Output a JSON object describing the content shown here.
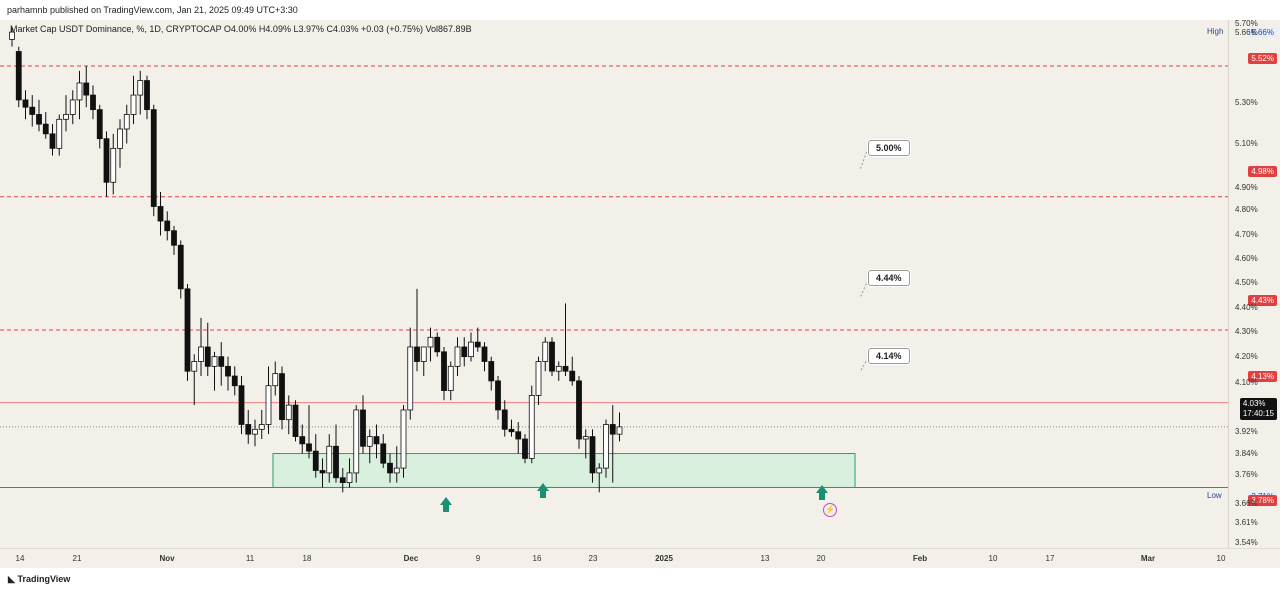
{
  "header": {
    "publisher_line": "parhamnb published on TradingView.com, Jan 21, 2025 09:49 UTC+3:30"
  },
  "footer": {
    "logo_text": "TradingView"
  },
  "colors": {
    "background": "#f3efe9",
    "candle_body_down": "#111111",
    "candle_body_up": "#ffffff",
    "resistance_line": "#e04040",
    "support_zone_fill": "#d7f0de",
    "support_zone_border": "#2a9d6a",
    "arrow": "#1a9070"
  },
  "chart_data": {
    "type": "candlestick",
    "legend": "Market Cap USDT Dominance, %, 1D, CRYPTOCAP  O4.00%  H4.09%  L3.97%  C4.03%  +0.03 (+0.75%)  Vol867.89B",
    "y_axis": {
      "ylim": [
        3.53,
        5.71
      ],
      "ticks": [
        "5.70%",
        "5.66%",
        "5.30%",
        "5.10%",
        "4.90%",
        "4.80%",
        "4.70%",
        "4.60%",
        "4.50%",
        "4.40%",
        "4.30%",
        "4.20%",
        "4.10%",
        "3.92%",
        "3.84%",
        "3.76%",
        "3.66%",
        "3.61%",
        "3.54%"
      ]
    },
    "x_axis": {
      "ticks": [
        "14",
        "21",
        "Nov",
        "11",
        "18",
        "Dec",
        "9",
        "16",
        "23",
        "2025",
        "13",
        "20",
        "Feb",
        "10",
        "17",
        "Mar",
        "10"
      ]
    },
    "high_label": {
      "text": "High",
      "value": "5.66%"
    },
    "low_label": {
      "text": "Low",
      "value": "3.71%"
    },
    "levels": [
      {
        "value": 5.52,
        "label": "5.52%",
        "style": "dashed"
      },
      {
        "value": 4.98,
        "label": "4.98%",
        "style": "dashed"
      },
      {
        "value": 4.43,
        "label": "4.43%",
        "style": "dashed"
      },
      {
        "value": 4.13,
        "label": "4.13%",
        "style": "solid"
      },
      {
        "value": 3.78,
        "label": "3.78%",
        "style": "solid"
      }
    ],
    "current_price": {
      "value": 4.03,
      "label": "4.03%",
      "countdown": "17:40:15"
    },
    "callouts": [
      "5.00%",
      "4.44%",
      "4.14%"
    ],
    "support_zone": {
      "from": 3.78,
      "to": 3.92
    },
    "candles": [
      [
        5.63,
        5.68,
        5.6,
        5.66
      ],
      [
        5.58,
        5.6,
        5.35,
        5.38
      ],
      [
        5.38,
        5.42,
        5.3,
        5.35
      ],
      [
        5.35,
        5.4,
        5.27,
        5.32
      ],
      [
        5.32,
        5.38,
        5.25,
        5.28
      ],
      [
        5.28,
        5.33,
        5.22,
        5.24
      ],
      [
        5.24,
        5.28,
        5.15,
        5.18
      ],
      [
        5.18,
        5.32,
        5.15,
        5.3
      ],
      [
        5.3,
        5.4,
        5.25,
        5.32
      ],
      [
        5.32,
        5.42,
        5.28,
        5.38
      ],
      [
        5.38,
        5.5,
        5.3,
        5.45
      ],
      [
        5.45,
        5.52,
        5.35,
        5.4
      ],
      [
        5.4,
        5.44,
        5.3,
        5.34
      ],
      [
        5.34,
        5.36,
        5.18,
        5.22
      ],
      [
        5.22,
        5.25,
        4.98,
        5.04
      ],
      [
        5.04,
        5.24,
        4.99,
        5.18
      ],
      [
        5.18,
        5.3,
        5.1,
        5.26
      ],
      [
        5.26,
        5.36,
        5.2,
        5.32
      ],
      [
        5.32,
        5.48,
        5.28,
        5.4
      ],
      [
        5.4,
        5.5,
        5.32,
        5.46
      ],
      [
        5.46,
        5.48,
        5.3,
        5.34
      ],
      [
        5.34,
        5.36,
        4.9,
        4.94
      ],
      [
        4.94,
        5.0,
        4.82,
        4.88
      ],
      [
        4.88,
        4.92,
        4.8,
        4.84
      ],
      [
        4.84,
        4.86,
        4.74,
        4.78
      ],
      [
        4.78,
        4.8,
        4.56,
        4.6
      ],
      [
        4.6,
        4.62,
        4.22,
        4.26
      ],
      [
        4.26,
        4.33,
        4.12,
        4.3
      ],
      [
        4.3,
        4.48,
        4.24,
        4.36
      ],
      [
        4.36,
        4.46,
        4.24,
        4.28
      ],
      [
        4.28,
        4.34,
        4.18,
        4.32
      ],
      [
        4.32,
        4.38,
        4.2,
        4.28
      ],
      [
        4.28,
        4.32,
        4.18,
        4.24
      ],
      [
        4.24,
        4.28,
        4.16,
        4.2
      ],
      [
        4.2,
        4.24,
        4.0,
        4.04
      ],
      [
        4.04,
        4.1,
        3.96,
        4.0
      ],
      [
        4.0,
        4.06,
        3.95,
        4.02
      ],
      [
        4.02,
        4.1,
        3.98,
        4.04
      ],
      [
        4.04,
        4.28,
        4.0,
        4.2
      ],
      [
        4.2,
        4.3,
        4.16,
        4.25
      ],
      [
        4.25,
        4.28,
        4.02,
        4.06
      ],
      [
        4.06,
        4.16,
        4.0,
        4.12
      ],
      [
        4.12,
        4.14,
        3.97,
        3.99
      ],
      [
        3.99,
        4.04,
        3.92,
        3.96
      ],
      [
        3.96,
        4.12,
        3.9,
        3.93
      ],
      [
        3.93,
        4.0,
        3.82,
        3.85
      ],
      [
        3.85,
        3.9,
        3.78,
        3.84
      ],
      [
        3.84,
        4.0,
        3.8,
        3.95
      ],
      [
        3.95,
        4.04,
        3.8,
        3.82
      ],
      [
        3.82,
        3.86,
        3.76,
        3.8
      ],
      [
        3.8,
        3.9,
        3.78,
        3.84
      ],
      [
        3.84,
        4.12,
        3.8,
        4.1
      ],
      [
        4.1,
        4.16,
        3.92,
        3.95
      ],
      [
        3.95,
        4.02,
        3.88,
        3.99
      ],
      [
        3.99,
        4.04,
        3.9,
        3.96
      ],
      [
        3.96,
        4.0,
        3.86,
        3.88
      ],
      [
        3.88,
        3.92,
        3.8,
        3.84
      ],
      [
        3.84,
        3.95,
        3.8,
        3.86
      ],
      [
        3.86,
        4.12,
        3.82,
        4.1
      ],
      [
        4.1,
        4.44,
        4.06,
        4.36
      ],
      [
        4.36,
        4.6,
        4.26,
        4.3
      ],
      [
        4.3,
        4.34,
        4.24,
        4.36
      ],
      [
        4.36,
        4.44,
        4.3,
        4.4
      ],
      [
        4.4,
        4.42,
        4.32,
        4.34
      ],
      [
        4.34,
        4.36,
        4.14,
        4.18
      ],
      [
        4.18,
        4.3,
        4.14,
        4.28
      ],
      [
        4.28,
        4.4,
        4.24,
        4.36
      ],
      [
        4.36,
        4.4,
        4.28,
        4.32
      ],
      [
        4.32,
        4.42,
        4.3,
        4.38
      ],
      [
        4.38,
        4.44,
        4.34,
        4.36
      ],
      [
        4.36,
        4.38,
        4.26,
        4.3
      ],
      [
        4.3,
        4.32,
        4.18,
        4.22
      ],
      [
        4.22,
        4.24,
        4.06,
        4.1
      ],
      [
        4.1,
        4.14,
        3.99,
        4.02
      ],
      [
        4.02,
        4.06,
        3.99,
        4.01
      ],
      [
        4.01,
        4.05,
        3.92,
        3.98
      ],
      [
        3.98,
        4.0,
        3.88,
        3.9
      ],
      [
        3.9,
        4.2,
        3.88,
        4.16
      ],
      [
        4.16,
        4.32,
        4.12,
        4.3
      ],
      [
        4.3,
        4.4,
        4.26,
        4.38
      ],
      [
        4.38,
        4.4,
        4.24,
        4.26
      ],
      [
        4.26,
        4.3,
        4.22,
        4.28
      ],
      [
        4.28,
        4.54,
        4.24,
        4.26
      ],
      [
        4.26,
        4.32,
        4.2,
        4.22
      ],
      [
        4.22,
        4.24,
        3.94,
        3.98
      ],
      [
        3.98,
        4.02,
        3.9,
        3.99
      ],
      [
        3.99,
        4.02,
        3.8,
        3.84
      ],
      [
        3.84,
        3.88,
        3.76,
        3.86
      ],
      [
        3.86,
        4.06,
        3.82,
        4.04
      ],
      [
        4.04,
        4.12,
        3.8,
        4.0
      ],
      [
        4.0,
        4.09,
        3.97,
        4.03
      ]
    ]
  }
}
